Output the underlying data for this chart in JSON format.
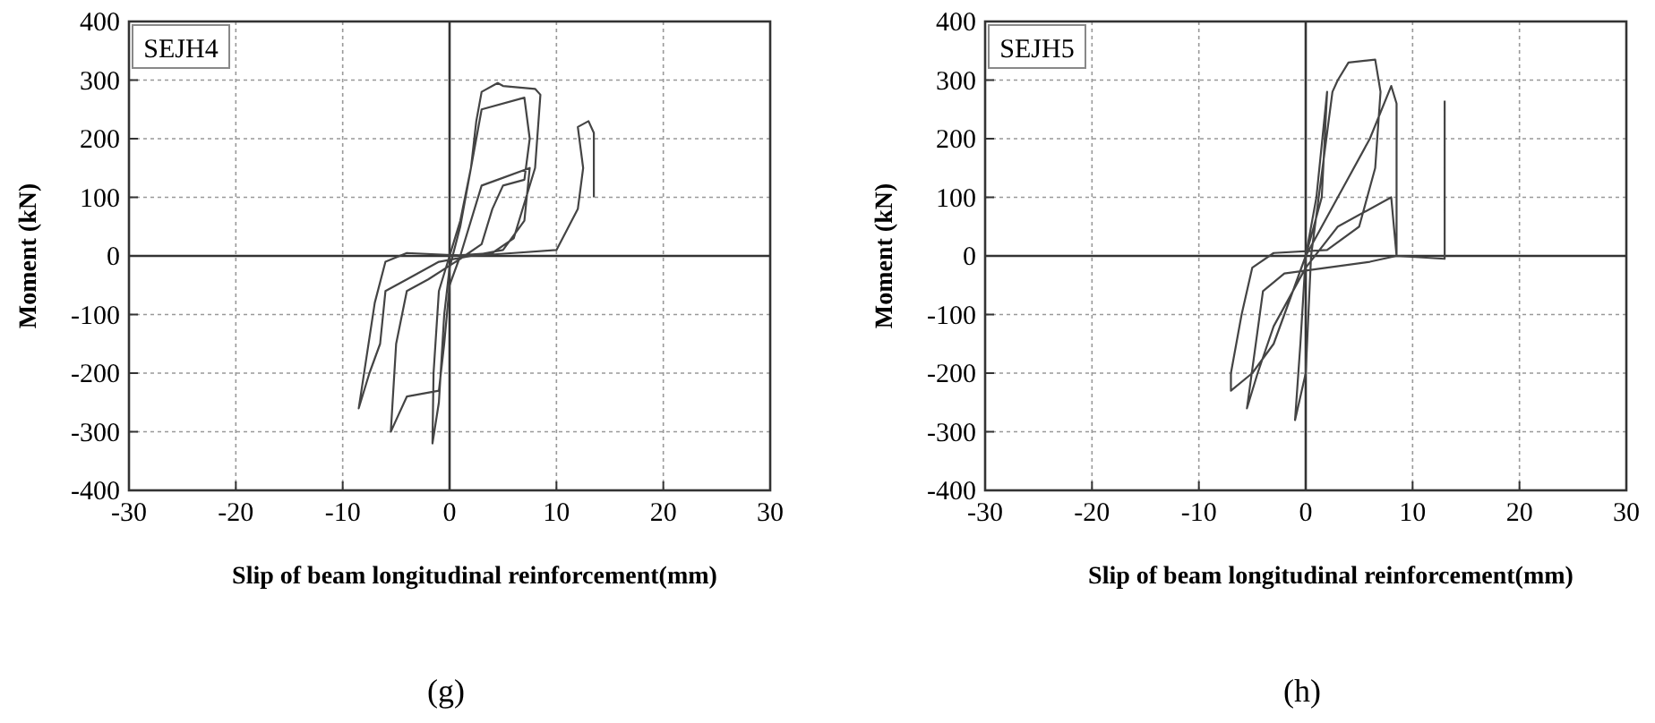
{
  "chart_data": [
    {
      "type": "line",
      "title": "SEJH4",
      "xlabel": "Slip of beam longitudinal reinforcement(mm)",
      "ylabel": "Moment (kN)",
      "annotations": [
        "(g)"
      ],
      "xlim": [
        -30,
        30
      ],
      "ylim": [
        -400,
        400
      ],
      "xticks": [
        -30,
        -20,
        -10,
        0,
        10,
        20,
        30
      ],
      "yticks": [
        -400,
        -300,
        -200,
        -100,
        0,
        100,
        200,
        300,
        400
      ],
      "grid": true,
      "series": [
        {
          "color": "#444444",
          "x": [
            0,
            1,
            2,
            2.5,
            3,
            4.5,
            5,
            8,
            8.5,
            8,
            6,
            4,
            0,
            -1,
            -1.5,
            -1.6,
            -1,
            -0.5,
            0,
            1,
            3,
            7,
            7.5,
            7,
            5,
            4,
            3,
            1,
            -2,
            -3,
            -4,
            -5,
            -5.5,
            -5,
            -4,
            -1,
            -0.5,
            0,
            1,
            3,
            4.5,
            7.5,
            7,
            5,
            2,
            -4,
            -6,
            -7,
            -8.5,
            -7.5,
            -6.5,
            -6,
            -4,
            -1,
            2,
            6,
            10,
            12,
            12.5,
            12,
            13,
            13.5,
            13.5
          ],
          "values": [
            0,
            60,
            150,
            230,
            280,
            295,
            290,
            285,
            275,
            150,
            30,
            5,
            0,
            -60,
            -200,
            -320,
            -250,
            -100,
            -20,
            50,
            250,
            270,
            200,
            130,
            120,
            80,
            20,
            -5,
            -40,
            -50,
            -60,
            -150,
            -300,
            -280,
            -240,
            -230,
            -150,
            -50,
            0,
            120,
            130,
            150,
            60,
            10,
            0,
            5,
            -10,
            -80,
            -260,
            -200,
            -150,
            -60,
            -40,
            -10,
            0,
            5,
            10,
            80,
            150,
            220,
            230,
            210,
            100
          ]
        }
      ]
    },
    {
      "type": "line",
      "title": "SEJH5",
      "xlabel": "Slip of beam longitudinal reinforcement(mm)",
      "ylabel": "Moment (kN)",
      "annotations": [
        "(h)"
      ],
      "xlim": [
        -30,
        30
      ],
      "ylim": [
        -400,
        400
      ],
      "xticks": [
        -30,
        -20,
        -10,
        0,
        10,
        20,
        30
      ],
      "yticks": [
        -400,
        -300,
        -200,
        -100,
        0,
        100,
        200,
        300,
        400
      ],
      "grid": true,
      "series": [
        {
          "color": "#444444",
          "x": [
            0,
            1,
            2,
            1.5,
            0,
            -0.5,
            -1,
            0,
            0.5,
            2.5,
            3,
            4,
            6.5,
            7,
            6.5,
            5,
            2,
            -3,
            -5,
            -6,
            -7,
            -7,
            -5,
            -3,
            -1,
            0,
            3,
            6,
            8,
            8.5,
            8.5,
            8.5,
            6,
            2,
            -2,
            -4,
            -5.5,
            -4.5,
            -3,
            0,
            3,
            8,
            8.5,
            13,
            13,
            13
          ],
          "values": [
            0,
            100,
            280,
            100,
            0,
            -150,
            -280,
            -200,
            0,
            280,
            300,
            330,
            335,
            280,
            150,
            50,
            10,
            5,
            -20,
            -100,
            -200,
            -230,
            -200,
            -150,
            -50,
            0,
            100,
            200,
            290,
            260,
            150,
            0,
            -10,
            -20,
            -30,
            -60,
            -260,
            -200,
            -120,
            -20,
            50,
            100,
            0,
            -5,
            110,
            265
          ]
        }
      ]
    }
  ]
}
